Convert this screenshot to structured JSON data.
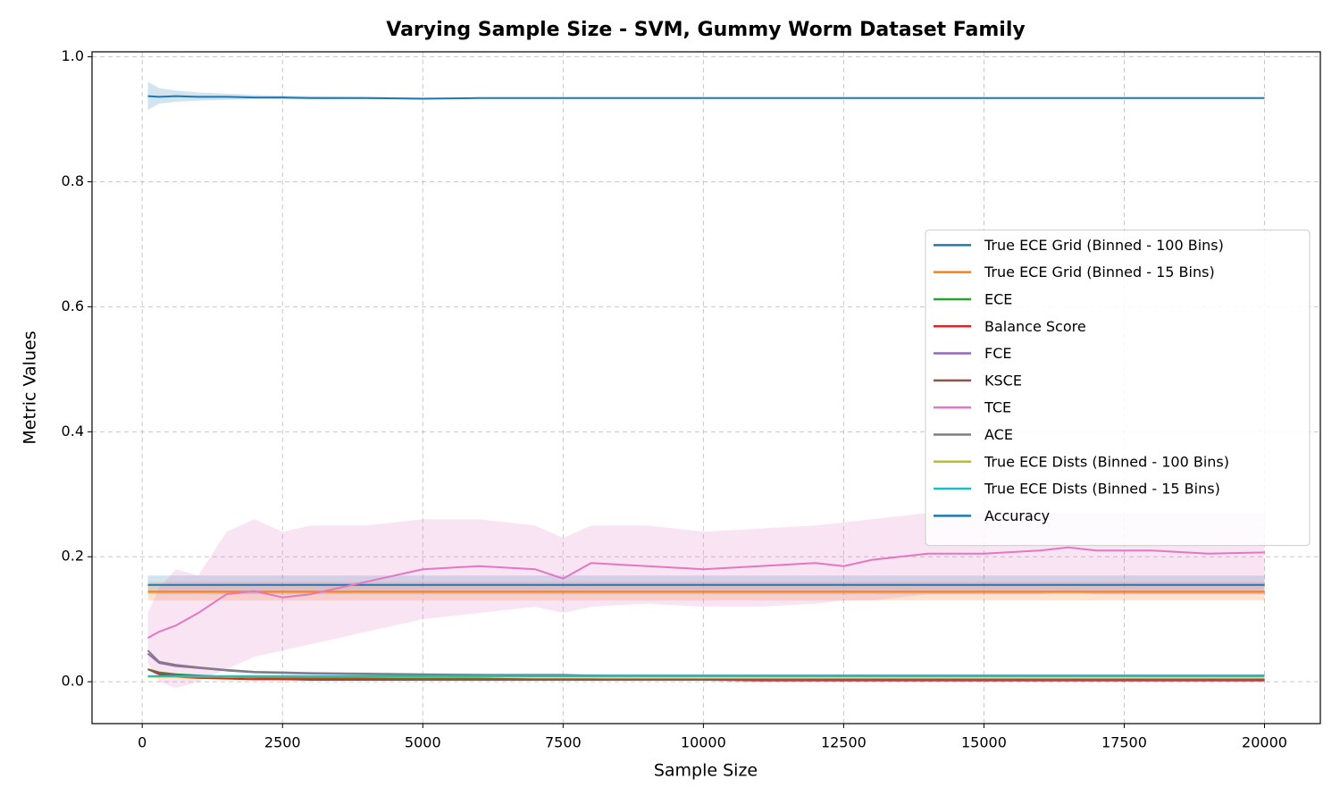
{
  "chart_data": {
    "type": "line",
    "title": "Varying Sample Size - SVM, Gummy Worm Dataset Family",
    "x_label": "Sample Size",
    "y_label": "Metric Values",
    "x": [
      100,
      300,
      600,
      1000,
      1500,
      2000,
      2500,
      3000,
      4000,
      5000,
      6000,
      7000,
      7500,
      8000,
      9000,
      10000,
      11000,
      12000,
      12500,
      13000,
      14000,
      15000,
      16000,
      16500,
      17000,
      18000,
      19000,
      20000
    ],
    "xlim": [
      -895,
      20995
    ],
    "xticks": [
      0,
      2500,
      5000,
      7500,
      10000,
      12500,
      15000,
      17500,
      20000
    ],
    "ylim": [
      -0.067,
      1.008
    ],
    "yticks": [
      {
        "value": 0,
        "label": "0.0"
      },
      {
        "value": 0.2,
        "label": "0.2"
      },
      {
        "value": 0.4,
        "label": "0.4"
      },
      {
        "value": 0.6,
        "label": "0.6"
      },
      {
        "value": 0.8,
        "label": "0.8"
      },
      {
        "value": 1.0,
        "label": "1.0"
      }
    ],
    "grid": true,
    "legend": "center right",
    "series": [
      {
        "name": "True ECE Grid (Binned - 100 Bins)",
        "color": "#1f77b4",
        "values": [
          0.155,
          0.155,
          0.155,
          0.155,
          0.155,
          0.155,
          0.155,
          0.155,
          0.155,
          0.155,
          0.155,
          0.155,
          0.155,
          0.155,
          0.155,
          0.155,
          0.155,
          0.155,
          0.155,
          0.155,
          0.155,
          0.155,
          0.155,
          0.155,
          0.155,
          0.155,
          0.155,
          0.155
        ],
        "lower": [
          0.14,
          0.14,
          0.14,
          0.14,
          0.14,
          0.14,
          0.14,
          0.14,
          0.14,
          0.14,
          0.14,
          0.14,
          0.14,
          0.14,
          0.14,
          0.14,
          0.14,
          0.14,
          0.14,
          0.14,
          0.14,
          0.14,
          0.14,
          0.14,
          0.14,
          0.14,
          0.14,
          0.14
        ],
        "upper": [
          0.17,
          0.17,
          0.17,
          0.17,
          0.17,
          0.17,
          0.17,
          0.17,
          0.17,
          0.17,
          0.17,
          0.17,
          0.17,
          0.17,
          0.17,
          0.17,
          0.17,
          0.17,
          0.17,
          0.17,
          0.17,
          0.17,
          0.17,
          0.17,
          0.17,
          0.17,
          0.17,
          0.17
        ]
      },
      {
        "name": "True ECE Grid (Binned - 15 Bins)",
        "color": "#ff7f0e",
        "values": [
          0.144,
          0.144,
          0.144,
          0.144,
          0.144,
          0.144,
          0.144,
          0.144,
          0.144,
          0.144,
          0.144,
          0.144,
          0.144,
          0.144,
          0.144,
          0.144,
          0.144,
          0.144,
          0.144,
          0.144,
          0.144,
          0.144,
          0.144,
          0.144,
          0.144,
          0.144,
          0.144,
          0.144
        ],
        "lower": [
          0.13,
          0.13,
          0.13,
          0.13,
          0.13,
          0.13,
          0.13,
          0.13,
          0.13,
          0.13,
          0.13,
          0.13,
          0.13,
          0.13,
          0.13,
          0.13,
          0.13,
          0.13,
          0.13,
          0.13,
          0.13,
          0.13,
          0.13,
          0.13,
          0.13,
          0.13,
          0.13,
          0.13
        ],
        "upper": [
          0.16,
          0.16,
          0.16,
          0.16,
          0.16,
          0.16,
          0.16,
          0.16,
          0.16,
          0.16,
          0.16,
          0.16,
          0.16,
          0.16,
          0.16,
          0.16,
          0.16,
          0.16,
          0.16,
          0.16,
          0.16,
          0.16,
          0.16,
          0.16,
          0.16,
          0.16,
          0.16,
          0.16
        ]
      },
      {
        "name": "ECE",
        "color": "#2ca02c",
        "values": [
          0.02,
          0.015,
          0.012,
          0.01,
          0.008,
          0.007,
          0.006,
          0.006,
          0.005,
          0.005,
          0.005,
          0.004,
          0.004,
          0.004,
          0.004,
          0.004,
          0.004,
          0.004,
          0.004,
          0.004,
          0.004,
          0.004,
          0.004,
          0.004,
          0.004,
          0.004,
          0.004,
          0.004
        ]
      },
      {
        "name": "Balance Score",
        "color": "#d62728",
        "values": [
          0.02,
          0.012,
          0.008,
          0.006,
          0.005,
          0.004,
          0.004,
          0.003,
          0.003,
          0.003,
          0.003,
          0.003,
          0.003,
          0.003,
          0.003,
          0.003,
          0.002,
          0.002,
          0.002,
          0.002,
          0.002,
          0.002,
          0.002,
          0.002,
          0.002,
          0.002,
          0.002,
          0.002
        ]
      },
      {
        "name": "FCE",
        "color": "#9467bd",
        "values": [
          0.045,
          0.03,
          0.025,
          0.022,
          0.018,
          0.015,
          0.014,
          0.013,
          0.012,
          0.011,
          0.011,
          0.01,
          0.01,
          0.01,
          0.009,
          0.009,
          0.009,
          0.009,
          0.009,
          0.008,
          0.008,
          0.008,
          0.008,
          0.008,
          0.008,
          0.008,
          0.008,
          0.008
        ]
      },
      {
        "name": "KSCE",
        "color": "#8c564b",
        "values": [
          0.02,
          0.014,
          0.011,
          0.009,
          0.008,
          0.007,
          0.006,
          0.005,
          0.005,
          0.004,
          0.004,
          0.004,
          0.004,
          0.004,
          0.003,
          0.003,
          0.003,
          0.003,
          0.003,
          0.003,
          0.003,
          0.003,
          0.003,
          0.003,
          0.003,
          0.003,
          0.003,
          0.003
        ]
      },
      {
        "name": "TCE",
        "color": "#e377c2",
        "values": [
          0.07,
          0.08,
          0.09,
          0.11,
          0.14,
          0.145,
          0.135,
          0.14,
          0.16,
          0.18,
          0.185,
          0.18,
          0.165,
          0.19,
          0.185,
          0.18,
          0.185,
          0.19,
          0.185,
          0.195,
          0.205,
          0.205,
          0.21,
          0.215,
          0.21,
          0.21,
          0.205,
          0.207
        ],
        "lower": [
          0.03,
          0.0,
          -0.01,
          0.0,
          0.02,
          0.04,
          0.05,
          0.06,
          0.08,
          0.1,
          0.11,
          0.12,
          0.11,
          0.12,
          0.125,
          0.12,
          0.12,
          0.125,
          0.13,
          0.13,
          0.14,
          0.14,
          0.14,
          0.145,
          0.14,
          0.14,
          0.14,
          0.14
        ],
        "upper": [
          0.11,
          0.15,
          0.18,
          0.17,
          0.24,
          0.26,
          0.24,
          0.25,
          0.25,
          0.26,
          0.26,
          0.25,
          0.23,
          0.25,
          0.25,
          0.24,
          0.245,
          0.25,
          0.255,
          0.26,
          0.27,
          0.27,
          0.27,
          0.27,
          0.27,
          0.27,
          0.27,
          0.27
        ]
      },
      {
        "name": "ACE",
        "color": "#7f7f7f",
        "values": [
          0.05,
          0.032,
          0.027,
          0.023,
          0.019,
          0.016,
          0.015,
          0.014,
          0.013,
          0.012,
          0.011,
          0.011,
          0.011,
          0.01,
          0.01,
          0.01,
          0.01,
          0.01,
          0.01,
          0.01,
          0.01,
          0.01,
          0.01,
          0.01,
          0.01,
          0.01,
          0.01,
          0.01
        ]
      },
      {
        "name": "True ECE Dists (Binned - 100 Bins)",
        "color": "#bcbd22",
        "values": [
          0.008,
          0.008,
          0.008,
          0.008,
          0.008,
          0.008,
          0.008,
          0.008,
          0.008,
          0.008,
          0.008,
          0.008,
          0.008,
          0.008,
          0.008,
          0.008,
          0.008,
          0.008,
          0.008,
          0.008,
          0.008,
          0.008,
          0.008,
          0.008,
          0.008,
          0.008,
          0.008,
          0.008
        ]
      },
      {
        "name": "True ECE Dists (Binned - 15 Bins)",
        "color": "#17becf",
        "values": [
          0.009,
          0.009,
          0.009,
          0.009,
          0.009,
          0.009,
          0.009,
          0.009,
          0.009,
          0.009,
          0.009,
          0.009,
          0.009,
          0.009,
          0.009,
          0.009,
          0.009,
          0.009,
          0.009,
          0.009,
          0.009,
          0.009,
          0.009,
          0.009,
          0.009,
          0.009,
          0.009,
          0.009
        ]
      },
      {
        "name": "Accuracy",
        "color": "#1f77b4",
        "values": [
          0.937,
          0.936,
          0.937,
          0.936,
          0.936,
          0.935,
          0.935,
          0.934,
          0.934,
          0.933,
          0.934,
          0.934,
          0.934,
          0.934,
          0.934,
          0.934,
          0.934,
          0.934,
          0.934,
          0.934,
          0.934,
          0.934,
          0.934,
          0.934,
          0.934,
          0.934,
          0.934,
          0.934
        ],
        "lower": [
          0.915,
          0.925,
          0.928,
          0.93,
          0.931,
          0.932,
          0.932,
          0.932,
          0.932,
          0.932,
          0.933,
          0.933,
          0.933,
          0.933,
          0.933,
          0.933,
          0.933,
          0.933,
          0.933,
          0.933,
          0.933,
          0.933,
          0.933,
          0.933,
          0.933,
          0.933,
          0.933,
          0.933
        ],
        "upper": [
          0.96,
          0.95,
          0.946,
          0.943,
          0.941,
          0.939,
          0.938,
          0.937,
          0.936,
          0.935,
          0.935,
          0.935,
          0.935,
          0.935,
          0.935,
          0.935,
          0.935,
          0.935,
          0.935,
          0.935,
          0.935,
          0.935,
          0.935,
          0.935,
          0.935,
          0.935,
          0.935,
          0.935
        ]
      }
    ]
  }
}
